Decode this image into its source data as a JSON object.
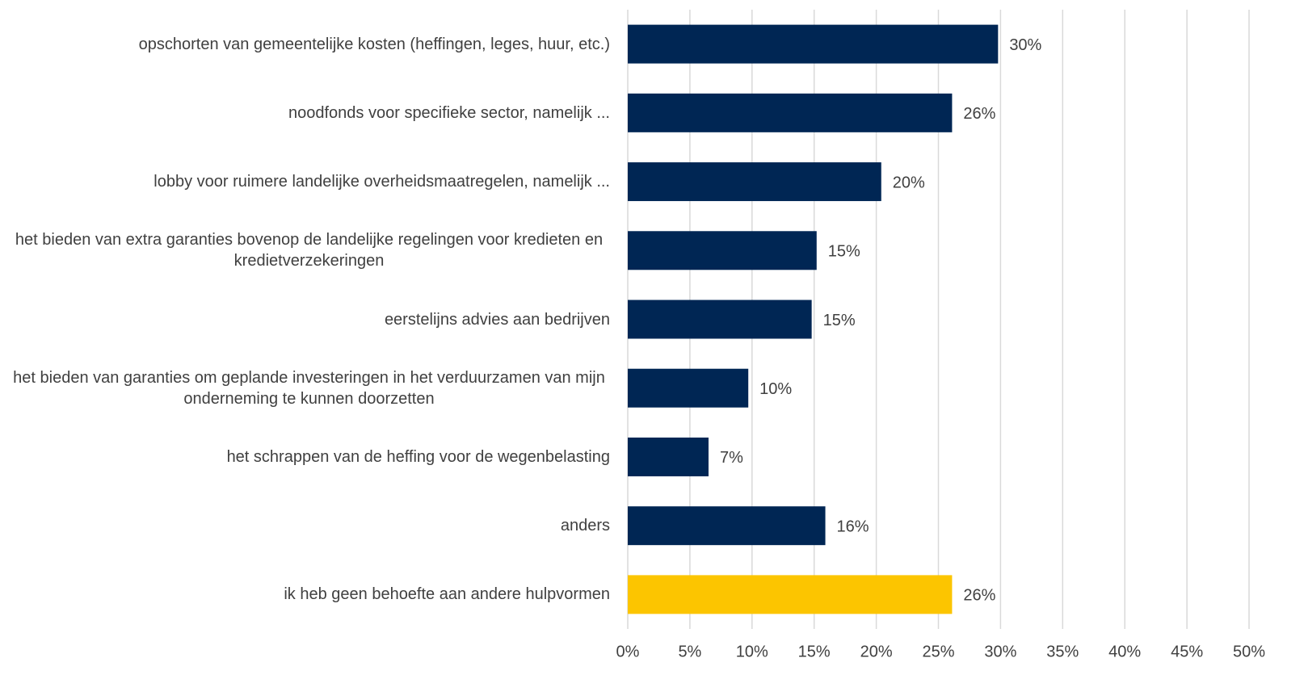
{
  "chart_data": {
    "type": "bar",
    "orientation": "horizontal",
    "categories": [
      "opschorten van gemeentelijke kosten (heffingen, leges, huur, etc.)",
      "noodfonds voor specifieke sector, namelijk ...",
      "lobby voor ruimere landelijke overheidsmaatregelen, namelijk ...",
      "het bieden van extra garanties bovenop de landelijke regelingen voor kredieten en kredietverzekeringen",
      "eerstelijns advies aan bedrijven",
      "het bieden van garanties om geplande investeringen in het verduurzamen van mijn onderneming te kunnen doorzetten",
      "het schrappen van de heffing voor de wegenbelasting",
      "anders",
      "ik heb geen behoefte aan andere hulpvormen"
    ],
    "values": [
      29.8,
      26.1,
      20.4,
      15.2,
      14.8,
      9.7,
      6.5,
      15.9,
      26.1
    ],
    "value_labels": [
      "30%",
      "26%",
      "20%",
      "15%",
      "15%",
      "10%",
      "7%",
      "16%",
      "26%"
    ],
    "colors": [
      "#002654",
      "#002654",
      "#002654",
      "#002654",
      "#002654",
      "#002654",
      "#002654",
      "#002654",
      "#fcc500"
    ],
    "xlim": [
      0,
      50
    ],
    "xticks": [
      {
        "value": 0,
        "label": "0%"
      },
      {
        "value": 5,
        "label": "5%"
      },
      {
        "value": 10,
        "label": "10%"
      },
      {
        "value": 15,
        "label": "15%"
      },
      {
        "value": 20,
        "label": "20%"
      },
      {
        "value": 25,
        "label": "25%"
      },
      {
        "value": 30,
        "label": "30%"
      },
      {
        "value": 35,
        "label": "35%"
      },
      {
        "value": 40,
        "label": "40%"
      },
      {
        "value": 45,
        "label": "45%"
      },
      {
        "value": 50,
        "label": "50%"
      }
    ],
    "grid": true
  }
}
